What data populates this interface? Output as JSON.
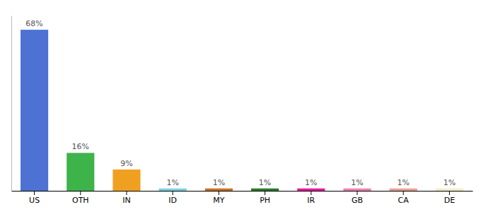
{
  "chart_data": {
    "type": "bar",
    "categories": [
      "US",
      "OTH",
      "IN",
      "ID",
      "MY",
      "PH",
      "IR",
      "GB",
      "CA",
      "DE"
    ],
    "values": [
      68,
      16,
      9,
      1,
      1,
      1,
      1,
      1,
      1,
      1
    ],
    "value_labels": [
      "68%",
      "16%",
      "9%",
      "1%",
      "1%",
      "1%",
      "1%",
      "1%",
      "1%",
      "1%"
    ],
    "colors": [
      "#4d72d4",
      "#3db34a",
      "#f0a020",
      "#7ecfe0",
      "#c87020",
      "#2a7a2a",
      "#e8189c",
      "#f080b0",
      "#e8a090",
      "#f0ecc8"
    ],
    "ylim": [
      0,
      74
    ],
    "tick_labels": "x",
    "data_labels": true
  }
}
